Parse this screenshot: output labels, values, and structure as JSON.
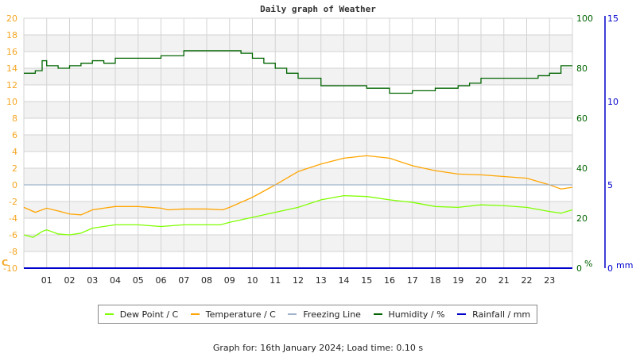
{
  "title": "Daily graph of Weather",
  "footer": "Graph for: 16th January 2024; Load time: 0.10 s",
  "colors": {
    "dew_point": "#7fff00",
    "temperature": "#ffa500",
    "freezing": "#a0b4cc",
    "humidity": "#006400",
    "rainfall": "#0000cc",
    "left_axis": "#f5a623",
    "grid": "#d3d3d3",
    "band": "#f2f2f2"
  },
  "legend": [
    {
      "label": "Dew Point / C",
      "color": "#7fff00"
    },
    {
      "label": "Temperature / C",
      "color": "#ffa500"
    },
    {
      "label": "Freezing Line",
      "color": "#a0b4cc"
    },
    {
      "label": "Humidity / %",
      "color": "#006400"
    },
    {
      "label": "Rainfall / mm",
      "color": "#0000cc"
    }
  ],
  "axes": {
    "left_unit": "C",
    "humidity_unit": "%",
    "rain_unit": "mm"
  },
  "chart_data": {
    "type": "line",
    "title": "Daily graph of Weather",
    "xlabel": "",
    "x_tick_labels": [
      "01",
      "02",
      "03",
      "04",
      "05",
      "06",
      "07",
      "08",
      "09",
      "10",
      "11",
      "12",
      "13",
      "14",
      "15",
      "16",
      "17",
      "18",
      "19",
      "20",
      "21",
      "22",
      "23"
    ],
    "x_range": [
      0,
      24
    ],
    "left_axis": {
      "label": "C",
      "ylim": [
        -10,
        20
      ],
      "ticks": [
        20,
        18,
        16,
        14,
        12,
        10,
        8,
        6,
        4,
        2,
        0,
        -2,
        -4,
        -6,
        -8,
        -10
      ]
    },
    "humidity_axis": {
      "label": "%",
      "ylim": [
        0,
        100
      ],
      "ticks": [
        100,
        80,
        60,
        40,
        20,
        0
      ]
    },
    "rain_axis": {
      "label": "mm",
      "ylim": [
        0,
        15
      ],
      "ticks": [
        15,
        10,
        5,
        0
      ]
    },
    "grid": true,
    "legend_position": "bottom",
    "series": [
      {
        "name": "Dew Point / C",
        "axis": "left",
        "color": "#7fff00",
        "x": [
          0,
          0.4,
          0.8,
          1,
          1.5,
          2,
          2.5,
          3,
          4,
          5,
          6,
          7,
          8,
          8.6,
          9,
          10,
          11,
          12,
          13,
          14,
          15,
          16,
          17,
          18,
          19,
          20,
          21,
          22,
          23,
          23.5,
          24
        ],
        "y": [
          -6.0,
          -6.3,
          -5.6,
          -5.4,
          -5.9,
          -6.0,
          -5.8,
          -5.2,
          -4.8,
          -4.8,
          -5.0,
          -4.8,
          -4.8,
          -4.8,
          -4.5,
          -3.9,
          -3.3,
          -2.7,
          -1.8,
          -1.3,
          -1.4,
          -1.8,
          -2.1,
          -2.6,
          -2.7,
          -2.4,
          -2.5,
          -2.7,
          -3.2,
          -3.4,
          -3.0
        ]
      },
      {
        "name": "Temperature / C",
        "axis": "left",
        "color": "#ffa500",
        "x": [
          0,
          0.5,
          1,
          1.6,
          2,
          2.5,
          3,
          3.5,
          4,
          5,
          6,
          6.3,
          7,
          8,
          8.7,
          9,
          10,
          11,
          12,
          13,
          14,
          15,
          16,
          17,
          18,
          19,
          20,
          21,
          22,
          23,
          23.5,
          24
        ],
        "y": [
          -2.7,
          -3.3,
          -2.8,
          -3.2,
          -3.5,
          -3.6,
          -3.0,
          -2.8,
          -2.6,
          -2.6,
          -2.8,
          -3.0,
          -2.9,
          -2.9,
          -3.0,
          -2.7,
          -1.5,
          0.0,
          1.6,
          2.5,
          3.2,
          3.5,
          3.2,
          2.3,
          1.7,
          1.3,
          1.2,
          1.0,
          0.8,
          0.0,
          -0.5,
          -0.3
        ]
      },
      {
        "name": "Freezing Line",
        "axis": "left",
        "color": "#a0b4cc",
        "x": [
          0,
          24
        ],
        "y": [
          0,
          0
        ]
      },
      {
        "name": "Humidity / %",
        "axis": "humidity",
        "color": "#006400",
        "x": [
          0,
          0.5,
          0.8,
          1,
          1.5,
          2,
          2.5,
          3,
          3.5,
          4,
          5,
          5.5,
          6,
          7,
          8,
          9,
          9.5,
          10,
          10.5,
          11,
          11.5,
          12,
          13,
          14,
          15,
          16,
          16.5,
          17,
          18,
          18.5,
          19,
          19.5,
          20,
          21,
          22,
          22.5,
          23,
          23.5,
          24
        ],
        "y": [
          78,
          79,
          83,
          81,
          80,
          81,
          82,
          83,
          82,
          84,
          84,
          84,
          85,
          87,
          87,
          87,
          86,
          84,
          82,
          80,
          78,
          76,
          73,
          73,
          72,
          70,
          70,
          71,
          72,
          72,
          73,
          74,
          76,
          76,
          76,
          77,
          78,
          81,
          81
        ]
      },
      {
        "name": "Rainfall / mm",
        "axis": "rain",
        "color": "#0000cc",
        "x": [
          0,
          24
        ],
        "y": [
          0,
          0
        ]
      }
    ]
  }
}
